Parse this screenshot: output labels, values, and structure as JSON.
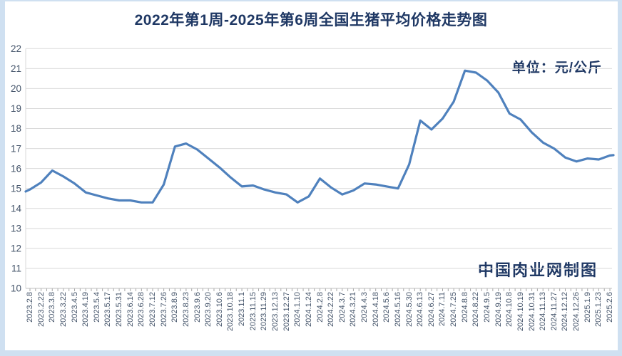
{
  "page": {
    "title": "2022年第1周-2025年第6周全国生猪平均价格走势图",
    "unit_label": "单位：元/公斤",
    "watermark": "中国肉业网制图"
  },
  "colors": {
    "title_text": "#1f3864",
    "axis_label": "#44546a",
    "gridline": "#d9d9d9",
    "axis_line": "#bfbfbf",
    "tick": "#a6a6a6",
    "series_line": "#4f81bd",
    "frame": "#cfe0f1",
    "background": "#ffffff"
  },
  "chart_data": {
    "type": "line",
    "title": "2022年第1周-2025年第6周全国生猪平均价格走势图",
    "unit": "元/公斤",
    "xlabel": "",
    "ylabel": "",
    "ylim": [
      10,
      22
    ],
    "yticks": [
      10,
      11,
      12,
      13,
      14,
      15,
      16,
      17,
      18,
      19,
      20,
      21,
      22
    ],
    "grid": "horizontal",
    "legend": "none",
    "categories": [
      "2023.2.8",
      "2023.2.22",
      "2023.3.8",
      "2023.3.22",
      "2023.4.5",
      "2023.4.19",
      "2023.5.4",
      "2023.5.17",
      "2023.5.31",
      "2023.6.14",
      "2023.6.28",
      "2023.7.12",
      "2023.7.26",
      "2023.8.9",
      "2023.8.23",
      "2023.9.6",
      "2023.9.20",
      "2023.10.6",
      "2023.10.18",
      "2023.11.1",
      "2023.11.15",
      "2023.11.29",
      "2023.12.13",
      "2023.12.27",
      "2024.1.10",
      "2024.1.24",
      "2024.2.8",
      "2024.2.22",
      "2024.3.7",
      "2024.3.21",
      "2024.4.3",
      "2024.4.18",
      "2024.5.6",
      "2024.5.16",
      "2024.5.30",
      "2024.6.13",
      "2024.6.27",
      "2024.7.11",
      "2024.7.25",
      "2024.8.8",
      "2024.8.22",
      "2024.9.5",
      "2024.9.19",
      "2024.10.8",
      "2024.10.19",
      "2024.10.31",
      "2024.11.13",
      "2024.11.27",
      "2024.12.12",
      "2024.12.26",
      "2025.1.9",
      "2025.1.23",
      "2025.2.6"
    ],
    "values": [
      14.95,
      15.3,
      15.9,
      15.6,
      15.25,
      14.8,
      14.65,
      14.5,
      14.4,
      14.4,
      14.3,
      14.3,
      15.2,
      17.1,
      17.25,
      16.95,
      16.5,
      16.05,
      15.55,
      15.1,
      15.15,
      14.95,
      14.8,
      14.7,
      14.3,
      14.6,
      15.5,
      15.05,
      14.7,
      14.9,
      15.25,
      15.2,
      15.1,
      15.0,
      16.2,
      18.4,
      17.95,
      18.5,
      19.35,
      20.9,
      20.8,
      20.4,
      19.8,
      18.75,
      18.45,
      17.8,
      17.3,
      17.0,
      16.55,
      16.35,
      16.5,
      16.45,
      16.65
    ],
    "lead_in_value": 14.85,
    "tail_out_value": 16.67
  }
}
